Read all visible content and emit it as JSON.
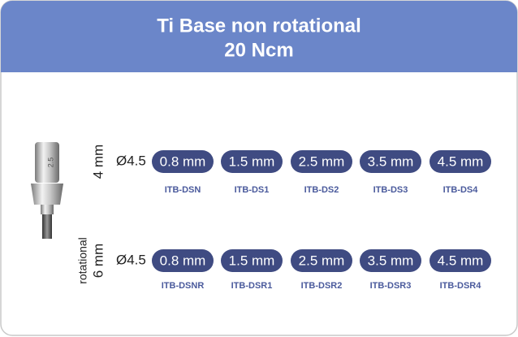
{
  "header": {
    "title": "Ti Base non rotational",
    "subtitle": "20 Ncm"
  },
  "image_label": "2.5",
  "rows": [
    {
      "side_labels": [
        "4 mm"
      ],
      "diameter": "Ø4.5",
      "items": [
        {
          "size": "0.8 mm",
          "code": "ITB-DSN"
        },
        {
          "size": "1.5 mm",
          "code": "ITB-DS1"
        },
        {
          "size": "2.5 mm",
          "code": "ITB-DS2"
        },
        {
          "size": "3.5 mm",
          "code": "ITB-DS3"
        },
        {
          "size": "4.5 mm",
          "code": "ITB-DS4"
        }
      ]
    },
    {
      "side_labels": [
        "rotational",
        "6 mm"
      ],
      "diameter": "Ø4.5",
      "items": [
        {
          "size": "0.8 mm",
          "code": "ITB-DSNR"
        },
        {
          "size": "1.5 mm",
          "code": "ITB-DSR1"
        },
        {
          "size": "2.5 mm",
          "code": "ITB-DSR2"
        },
        {
          "size": "3.5 mm",
          "code": "ITB-DSR3"
        },
        {
          "size": "4.5 mm",
          "code": "ITB-DSR4"
        }
      ]
    }
  ]
}
